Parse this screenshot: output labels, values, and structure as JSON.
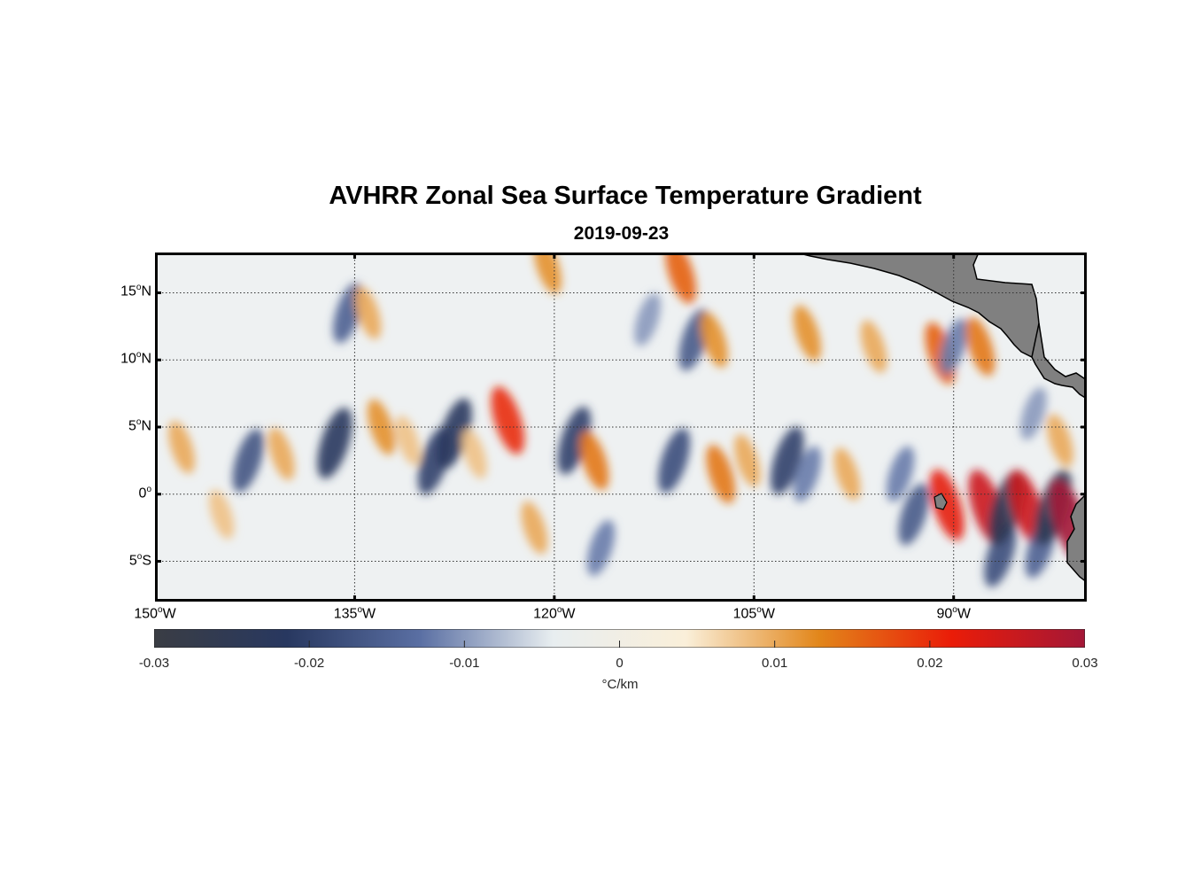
{
  "figure": {
    "title": "AVHRR Zonal Sea Surface Temperature Gradient",
    "subtitle": "2019-09-23"
  },
  "map": {
    "lat_range": [
      -8,
      18
    ],
    "lon_range": [
      -150,
      -80
    ],
    "lat_ticks": [
      {
        "value": 15,
        "deg": "15",
        "hemi": "N"
      },
      {
        "value": 10,
        "deg": "10",
        "hemi": "N"
      },
      {
        "value": 5,
        "deg": "5",
        "hemi": "N"
      },
      {
        "value": 0,
        "deg": "0",
        "hemi": ""
      },
      {
        "value": -5,
        "deg": "5",
        "hemi": "S"
      }
    ],
    "lon_ticks": [
      {
        "value": -150,
        "deg": "150",
        "hemi": "W"
      },
      {
        "value": -135,
        "deg": "135",
        "hemi": "W"
      },
      {
        "value": -120,
        "deg": "120",
        "hemi": "W"
      },
      {
        "value": -105,
        "deg": "105",
        "hemi": "W"
      },
      {
        "value": -90,
        "deg": "90",
        "hemi": "W"
      }
    ],
    "grid": true,
    "land_color": "#808080",
    "features": [
      {
        "lon": -148,
        "lat": 3.5,
        "v": 0.01
      },
      {
        "lon": -145,
        "lat": -1.5,
        "v": 0.008
      },
      {
        "lon": -143,
        "lat": 2.5,
        "v": -0.017
      },
      {
        "lon": -140.5,
        "lat": 3.0,
        "v": 0.01
      },
      {
        "lon": -136.5,
        "lat": 3.8,
        "v": -0.022
      },
      {
        "lon": -135.5,
        "lat": 13.5,
        "v": -0.015
      },
      {
        "lon": -134,
        "lat": 13.5,
        "v": 0.01
      },
      {
        "lon": -133,
        "lat": 5.0,
        "v": 0.012
      },
      {
        "lon": -131,
        "lat": 4.0,
        "v": 0.008
      },
      {
        "lon": -129,
        "lat": 2.5,
        "v": -0.02
      },
      {
        "lon": -127.5,
        "lat": 4.5,
        "v": -0.022
      },
      {
        "lon": -126,
        "lat": 3.0,
        "v": 0.008
      },
      {
        "lon": -123.5,
        "lat": 5.5,
        "v": 0.02
      },
      {
        "lon": -121.5,
        "lat": -2.5,
        "v": 0.01
      },
      {
        "lon": -120.5,
        "lat": 17.0,
        "v": 0.012
      },
      {
        "lon": -118.5,
        "lat": 4.0,
        "v": -0.02
      },
      {
        "lon": -117,
        "lat": 2.5,
        "v": 0.014
      },
      {
        "lon": -116.5,
        "lat": -4.0,
        "v": -0.012
      },
      {
        "lon": -113,
        "lat": 13.0,
        "v": -0.01
      },
      {
        "lon": -111,
        "lat": 2.5,
        "v": -0.018
      },
      {
        "lon": -110.5,
        "lat": 16.5,
        "v": 0.016
      },
      {
        "lon": -109.5,
        "lat": 11.5,
        "v": -0.016
      },
      {
        "lon": -108,
        "lat": 11.5,
        "v": 0.012
      },
      {
        "lon": -107.5,
        "lat": 1.5,
        "v": 0.014
      },
      {
        "lon": -105.5,
        "lat": 2.5,
        "v": 0.01
      },
      {
        "lon": -102.5,
        "lat": 2.5,
        "v": -0.02
      },
      {
        "lon": -101,
        "lat": 1.5,
        "v": -0.012
      },
      {
        "lon": -101,
        "lat": 12.0,
        "v": 0.012
      },
      {
        "lon": -98,
        "lat": 1.5,
        "v": 0.01
      },
      {
        "lon": -96,
        "lat": 11.0,
        "v": 0.01
      },
      {
        "lon": -94,
        "lat": 1.5,
        "v": -0.012
      },
      {
        "lon": -93,
        "lat": -1.5,
        "v": -0.016
      },
      {
        "lon": -91,
        "lat": 10.5,
        "v": 0.016
      },
      {
        "lon": -90,
        "lat": 11.0,
        "v": -0.012
      },
      {
        "lon": -90.5,
        "lat": -0.8,
        "v": 0.022
      },
      {
        "lon": -88,
        "lat": 11.0,
        "v": 0.014
      },
      {
        "lon": -87.5,
        "lat": -1.0,
        "v": 0.025
      },
      {
        "lon": -86.5,
        "lat": -4.5,
        "v": -0.018
      },
      {
        "lon": -86,
        "lat": -1.0,
        "v": -0.025
      },
      {
        "lon": -84.5,
        "lat": -1.0,
        "v": 0.025
      },
      {
        "lon": -83.5,
        "lat": -4.0,
        "v": -0.015
      },
      {
        "lon": -82.5,
        "lat": -1.0,
        "v": -0.025
      },
      {
        "lon": -81.3,
        "lat": -2.0,
        "v": 0.03
      },
      {
        "lon": -82,
        "lat": 4.0,
        "v": 0.01
      },
      {
        "lon": -84,
        "lat": 6.0,
        "v": -0.01
      }
    ]
  },
  "colorbar": {
    "min": -0.03,
    "max": 0.03,
    "tick_labels": [
      "-0.03",
      "-0.02",
      "-0.01",
      "0",
      "0.01",
      "0.02",
      "0.03"
    ],
    "tick_values": [
      -0.03,
      -0.02,
      -0.01,
      0,
      0.01,
      0.02,
      0.03
    ],
    "unit": "°C/km",
    "colors": [
      "#3a3d44",
      "#283860",
      "#5a6fa3",
      "#e8eef0",
      "#faefd9",
      "#e2861a",
      "#ea1c08",
      "#a31737"
    ]
  }
}
